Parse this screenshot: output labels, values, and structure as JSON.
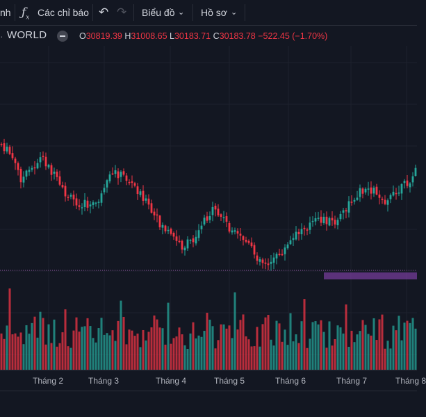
{
  "toolbar": {
    "partial_left": "nh",
    "indicators_label": "Các chỉ báo",
    "chart_label": "Biểu đồ",
    "profile_label": "Hồ sơ"
  },
  "legend": {
    "symbol": "WORLD",
    "o_key": "O",
    "o_val": "30819.39",
    "h_key": "H",
    "h_val": "31008.65",
    "l_key": "L",
    "l_val": "30183.71",
    "c_key": "C",
    "c_val": "30183.78",
    "change": "−522.45 (−1.70%)"
  },
  "colors": {
    "background": "#131722",
    "up": "#26a69a",
    "down": "#f23645",
    "grid": "#1e222d",
    "highlight": "#7b3fa0"
  },
  "time_axis": [
    "Tháng 2",
    "Tháng 3",
    "Tháng 4",
    "Tháng 5",
    "Tháng 6",
    "Tháng 7",
    "Tháng 8"
  ],
  "chart_data": {
    "type": "candlestick",
    "x_labels": [
      "Tháng 2",
      "Tháng 3",
      "Tháng 4",
      "Tháng 5",
      "Tháng 6",
      "Tháng 7",
      "Tháng 8"
    ],
    "last_bar": {
      "open": 30819.39,
      "high": 31008.65,
      "low": 30183.71,
      "close": 30183.78,
      "change": -522.45,
      "change_pct": -1.7
    },
    "price_path_shape": [
      0.88,
      0.8,
      0.65,
      0.72,
      0.8,
      0.7,
      0.58,
      0.52,
      0.5,
      0.48,
      0.55,
      0.7,
      0.68,
      0.62,
      0.55,
      0.42,
      0.35,
      0.28,
      0.22,
      0.27,
      0.4,
      0.45,
      0.4,
      0.3,
      0.27,
      0.18,
      0.12,
      0.14,
      0.2,
      0.28,
      0.35,
      0.38,
      0.4,
      0.37,
      0.45,
      0.55,
      0.6,
      0.58,
      0.52,
      0.55,
      0.62,
      0.7
    ],
    "volume_bars": "shown",
    "horizontal_line": "dotted",
    "highlight_zone": "shown"
  }
}
